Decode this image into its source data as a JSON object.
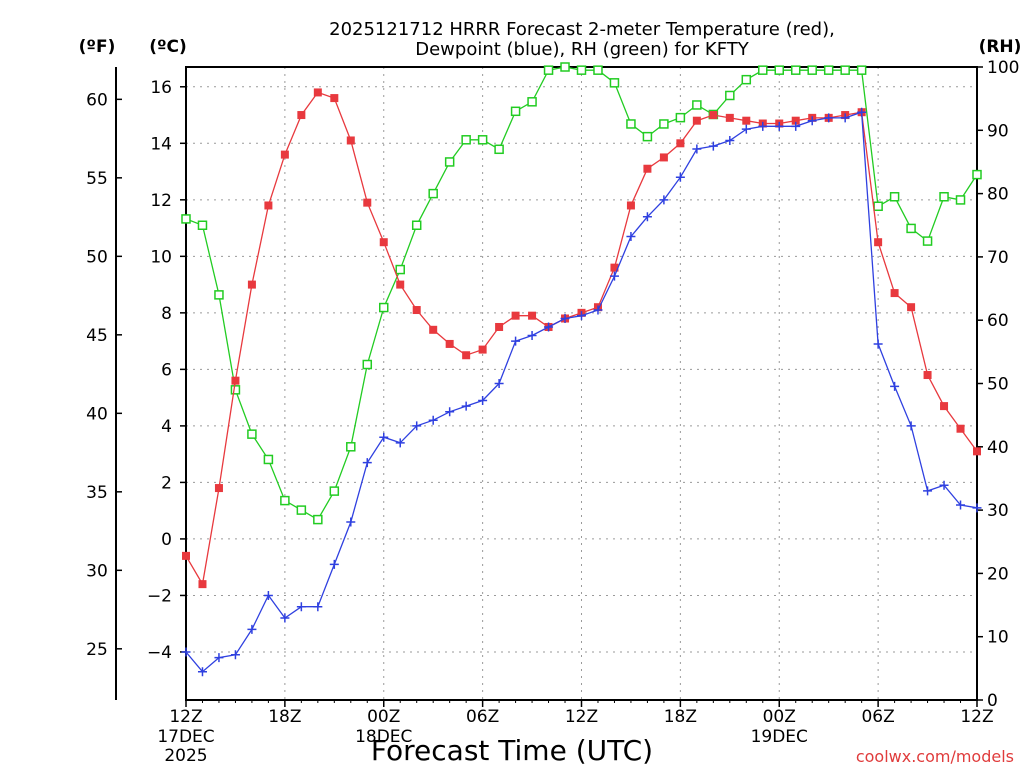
{
  "chart_data": {
    "type": "line",
    "title_line1": "2025121712 HRRR Forecast 2-meter Temperature (red),",
    "title_line2": "Dewpoint (blue), RH (green) for KFTY",
    "xlabel": "Forecast Time (UTC)",
    "unit_labels": {
      "fahrenheit": "(ºF)",
      "celsius": "(ºC)",
      "rh": "(RH)"
    },
    "credit": "coolwx.com/models",
    "x_ticks": [
      {
        "hour": 0,
        "label": "12Z",
        "date": "17DEC",
        "year": "2025"
      },
      {
        "hour": 6,
        "label": "18Z",
        "date": "",
        "year": ""
      },
      {
        "hour": 12,
        "label": "00Z",
        "date": "18DEC",
        "year": ""
      },
      {
        "hour": 18,
        "label": "06Z",
        "date": "",
        "year": ""
      },
      {
        "hour": 24,
        "label": "12Z",
        "date": "",
        "year": ""
      },
      {
        "hour": 30,
        "label": "18Z",
        "date": "",
        "year": ""
      },
      {
        "hour": 36,
        "label": "00Z",
        "date": "19DEC",
        "year": ""
      },
      {
        "hour": 42,
        "label": "06Z",
        "date": "",
        "year": ""
      },
      {
        "hour": 48,
        "label": "12Z",
        "date": "",
        "year": ""
      }
    ],
    "x_range": [
      0,
      48
    ],
    "celsius_ticks": [
      "−4",
      "−2",
      "0",
      "2",
      "4",
      "6",
      "8",
      "10",
      "12",
      "14",
      "16"
    ],
    "celsius_range": [
      -5.7,
      16.7
    ],
    "fahrenheit_ticks": [
      "25",
      "30",
      "35",
      "40",
      "45",
      "50",
      "55",
      "60"
    ],
    "rh_ticks": [
      "0",
      "10",
      "20",
      "30",
      "40",
      "50",
      "60",
      "70",
      "80",
      "90",
      "100"
    ],
    "rh_range": [
      0,
      100
    ],
    "grid": true,
    "series": [
      {
        "key": "temperature",
        "color": "#e8393e",
        "marker": "filled-square",
        "axis": "celsius",
        "values": [
          -0.6,
          -1.6,
          1.8,
          5.6,
          9.0,
          11.8,
          13.6,
          15.0,
          15.8,
          15.6,
          14.1,
          11.9,
          10.5,
          9.0,
          8.1,
          7.4,
          6.9,
          6.5,
          6.7,
          7.5,
          7.9,
          7.9,
          7.5,
          7.8,
          8.0,
          8.2,
          9.6,
          11.8,
          13.1,
          13.5,
          14.0,
          14.8,
          15.0,
          14.9,
          14.8,
          14.7,
          14.7,
          14.8,
          14.9,
          14.9,
          15.0,
          15.1,
          10.5,
          8.7,
          8.2,
          5.8,
          4.7,
          3.9,
          3.1
        ]
      },
      {
        "key": "dewpoint",
        "color": "#2f40e0",
        "marker": "plus",
        "axis": "celsius",
        "values": [
          -4.0,
          -4.7,
          -4.2,
          -4.1,
          -3.2,
          -2.0,
          -2.8,
          -2.4,
          -2.4,
          -0.9,
          0.6,
          2.7,
          3.6,
          3.4,
          4.0,
          4.2,
          4.5,
          4.7,
          4.9,
          5.5,
          7.0,
          7.2,
          7.5,
          7.8,
          7.9,
          8.1,
          9.3,
          10.7,
          11.4,
          12.0,
          12.8,
          13.8,
          13.9,
          14.1,
          14.5,
          14.6,
          14.6,
          14.6,
          14.8,
          14.9,
          14.9,
          15.1,
          6.9,
          5.4,
          4.0,
          1.7,
          1.9,
          1.2,
          1.1
        ]
      },
      {
        "key": "rh",
        "color": "#22cc22",
        "marker": "open-square",
        "axis": "rh",
        "values": [
          76,
          75,
          64,
          49,
          42,
          38,
          31.5,
          30,
          28.5,
          33,
          40,
          53,
          62,
          68,
          75,
          80,
          85,
          88.5,
          88.5,
          87,
          93,
          94.5,
          99.5,
          100,
          99.5,
          99.5,
          97.5,
          91,
          89,
          91,
          92,
          94,
          92.5,
          95.5,
          98,
          99.5,
          99.5,
          99.5,
          99.5,
          99.5,
          99.5,
          99.5,
          78,
          79.5,
          74.5,
          72.5,
          79.5,
          79,
          83
        ]
      }
    ]
  }
}
